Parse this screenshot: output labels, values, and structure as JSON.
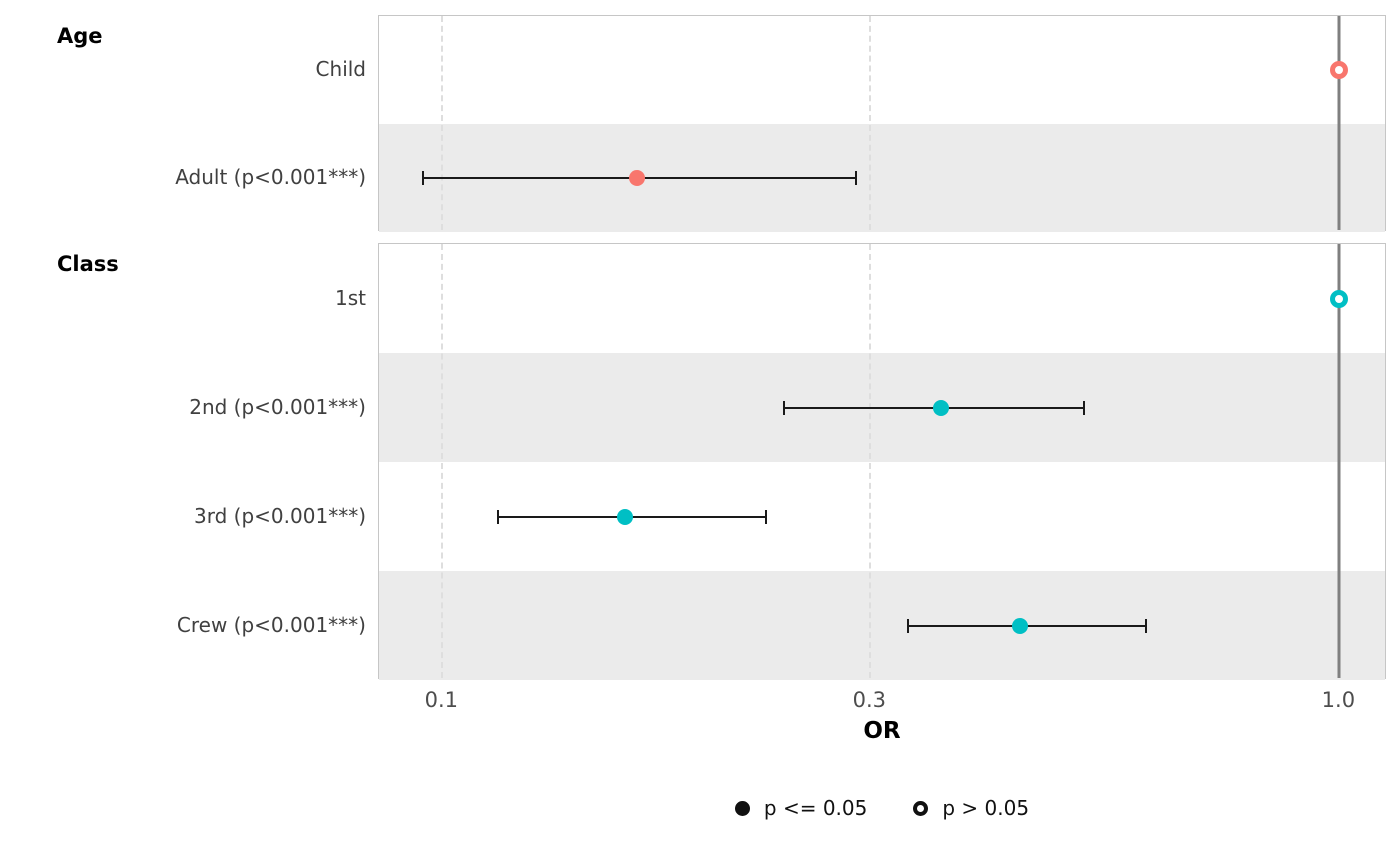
{
  "chart_data": {
    "type": "forest",
    "title": "",
    "xlabel": "OR",
    "x_scale": "log10",
    "x_domain": [
      0.085,
      1.13
    ],
    "x_ticks": [
      {
        "value": 0.1,
        "label": "0.1"
      },
      {
        "value": 0.3,
        "label": "0.3"
      },
      {
        "value": 1.0,
        "label": "1.0"
      }
    ],
    "dashed_gridlines": [
      0.1,
      0.3
    ],
    "reference_line": 1.0,
    "panels": [
      {
        "title": "Age",
        "color": "#F8766D",
        "rows": [
          {
            "label": "Child",
            "or": 1.0,
            "ci_low": null,
            "ci_high": null,
            "reference": true,
            "significant": false,
            "striped": false
          },
          {
            "label": "Adult (p<0.001***)",
            "or": 0.165,
            "ci_low": 0.095,
            "ci_high": 0.29,
            "reference": false,
            "significant": true,
            "striped": true
          }
        ]
      },
      {
        "title": "Class",
        "color": "#00BFC4",
        "rows": [
          {
            "label": "1st",
            "or": 1.0,
            "ci_low": null,
            "ci_high": null,
            "reference": true,
            "significant": false,
            "striped": false
          },
          {
            "label": "2nd (p<0.001***)",
            "or": 0.36,
            "ci_low": 0.24,
            "ci_high": 0.52,
            "reference": false,
            "significant": true,
            "striped": true
          },
          {
            "label": "3rd (p<0.001***)",
            "or": 0.16,
            "ci_low": 0.115,
            "ci_high": 0.23,
            "reference": false,
            "significant": true,
            "striped": false
          },
          {
            "label": "Crew (p<0.001***)",
            "or": 0.44,
            "ci_low": 0.33,
            "ci_high": 0.61,
            "reference": false,
            "significant": true,
            "striped": true
          }
        ]
      }
    ],
    "legend": [
      {
        "label": "p <= 0.05",
        "marker": "filled"
      },
      {
        "label": "p > 0.05",
        "marker": "open"
      }
    ],
    "colors": {
      "stripe": "#ebebeb",
      "panel_border": "#c6c6c6",
      "gridline": "#dedede",
      "reference_line": "#7f7f7f",
      "error_bar": "#1a1a1a",
      "legend_marker": "#111111"
    },
    "legend_position": "bottom-center",
    "grid": "dashed-vertical-at-ticks"
  }
}
